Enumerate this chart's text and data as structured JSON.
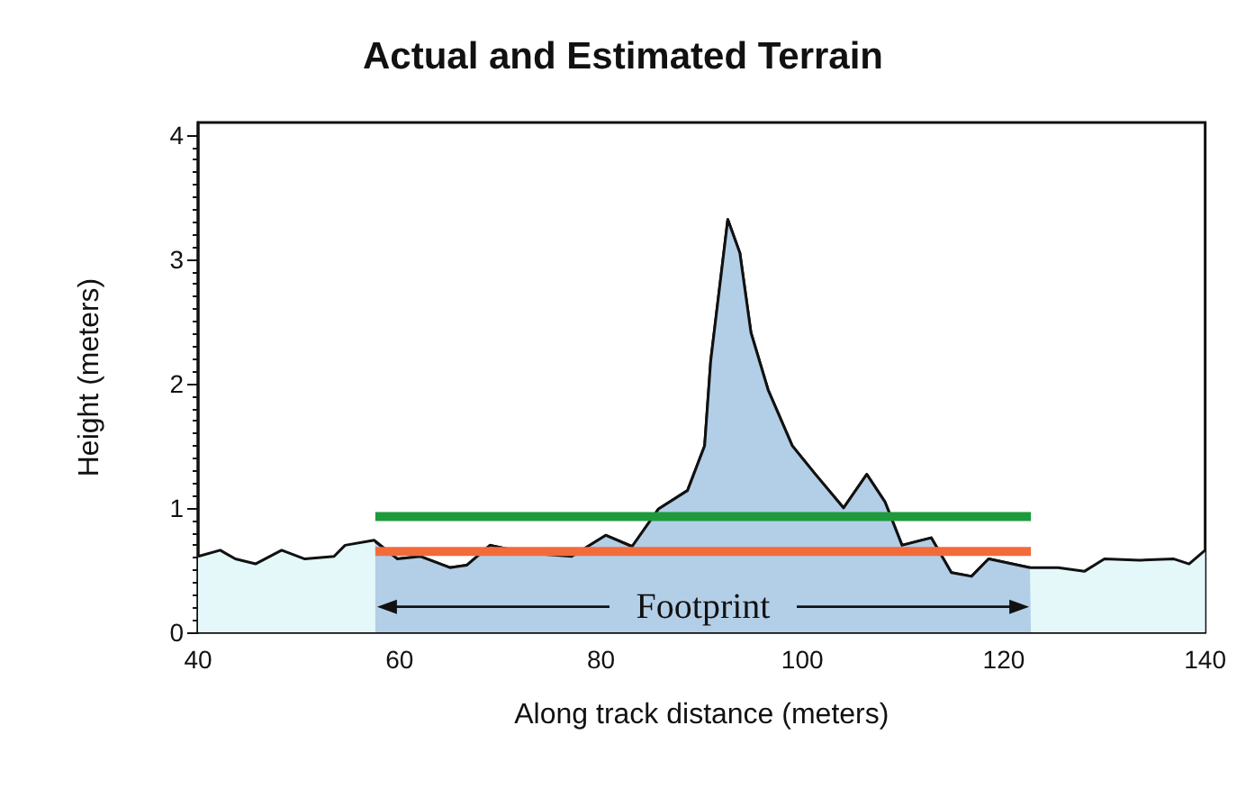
{
  "chart_data": {
    "type": "area",
    "title": "Actual and Estimated Terrain",
    "xlabel": "Along track distance (meters)",
    "ylabel": "Height (meters)",
    "xlim": [
      40,
      140
    ],
    "xticks": [
      40,
      60,
      80,
      100,
      120,
      140
    ],
    "ylim": [
      0,
      4.1
    ],
    "yticks": [
      0,
      1,
      2,
      3,
      4
    ],
    "grid": false,
    "series": [
      {
        "color": "#e4f8fa",
        "x": [
          40,
          42.2,
          43.7,
          45.7,
          48.3,
          50.6,
          53.5,
          54.6,
          57.5,
          59.8,
          62.1,
          65.0,
          66.7,
          69.0,
          72.5,
          77.1,
          80.5,
          83.1,
          85.7,
          88.6,
          90.3,
          90.9,
          92.6,
          93.8,
          94.9,
          96.6,
          99.0,
          101.3,
          104.1,
          106.4,
          108.2,
          109.9,
          112.8,
          114.8,
          116.8,
          118.5,
          122.6,
          125.4,
          128.0,
          130.0,
          133.5,
          136.9,
          138.4,
          140
        ],
        "values": [
          0.61,
          0.66,
          0.59,
          0.55,
          0.66,
          0.59,
          0.61,
          0.7,
          0.74,
          0.59,
          0.61,
          0.52,
          0.54,
          0.7,
          0.64,
          0.61,
          0.78,
          0.69,
          0.99,
          1.14,
          1.5,
          2.18,
          3.32,
          3.05,
          2.41,
          1.95,
          1.5,
          1.27,
          1.0,
          1.27,
          1.05,
          0.7,
          0.76,
          0.48,
          0.45,
          0.59,
          0.52,
          0.52,
          0.49,
          0.59,
          0.58,
          0.59,
          0.55,
          0.66
        ]
      },
      {
        "color": "#b3cfe7",
        "x": [
          57.6,
          59.8,
          62.1,
          65.0,
          66.7,
          69.0,
          72.5,
          77.1,
          80.5,
          83.1,
          85.7,
          88.6,
          90.3,
          90.9,
          92.6,
          93.8,
          94.9,
          96.6,
          99.0,
          101.3,
          104.1,
          106.4,
          108.2,
          109.9,
          112.8,
          114.8,
          116.8,
          118.5,
          122.6,
          122.7
        ],
        "values": [
          0.73,
          0.59,
          0.61,
          0.52,
          0.54,
          0.7,
          0.64,
          0.61,
          0.78,
          0.69,
          0.99,
          1.14,
          1.5,
          2.18,
          3.32,
          3.05,
          2.41,
          1.95,
          1.5,
          1.27,
          1.0,
          1.27,
          1.05,
          0.7,
          0.76,
          0.48,
          0.45,
          0.59,
          0.52,
          0.52
        ]
      },
      {
        "type": "line",
        "color": "#1e9a3c",
        "x": [
          57.6,
          122.7
        ],
        "values": [
          0.93,
          0.93
        ]
      },
      {
        "type": "line",
        "color": "#f26b3a",
        "x": [
          57.6,
          122.7
        ],
        "values": [
          0.65,
          0.65
        ]
      }
    ],
    "annotations": [
      "Footprint"
    ]
  }
}
